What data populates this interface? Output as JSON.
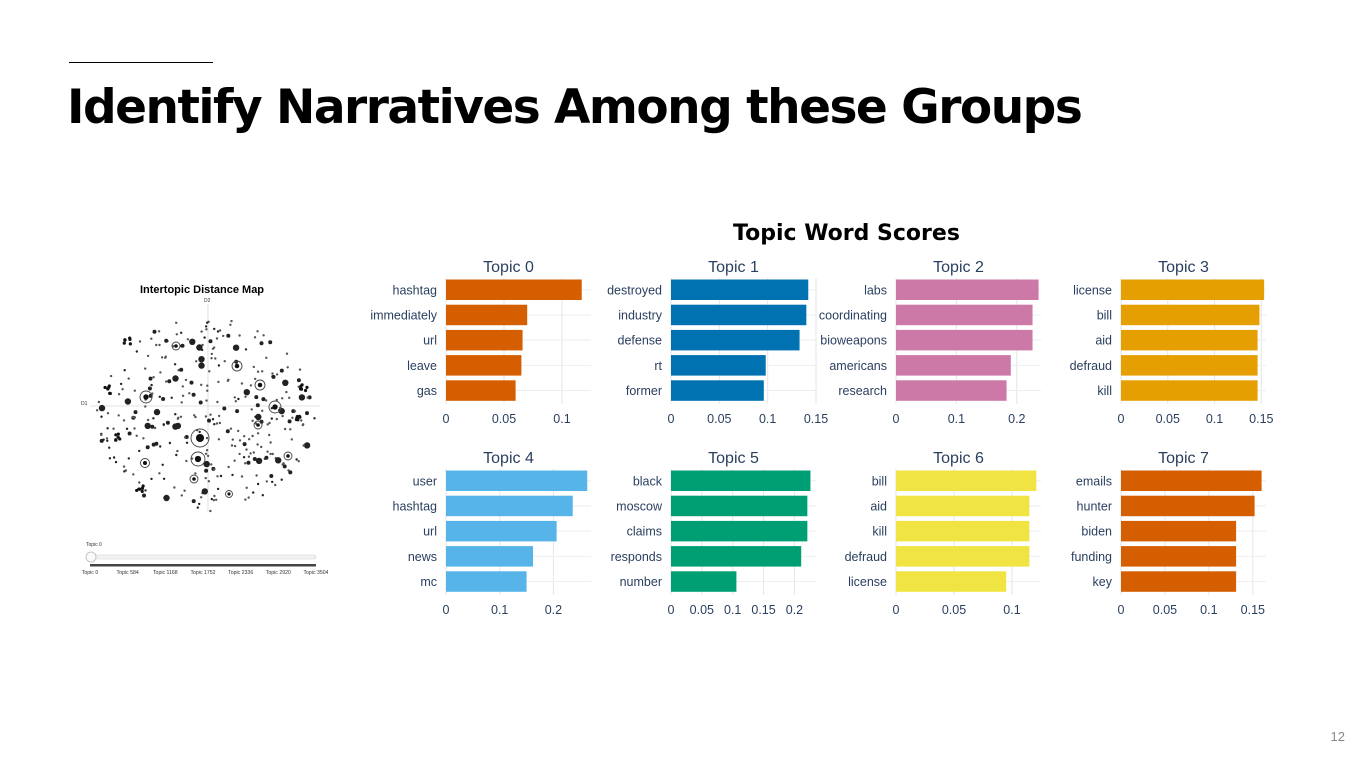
{
  "slide": {
    "title": "Identify Narratives Among these Groups",
    "page_number": "12"
  },
  "map": {
    "title": "Intertopic Distance Map",
    "axis_x_label": "D1",
    "axis_y_label": "D2",
    "slider_label": "Topic 0",
    "slider_ticks": [
      "Topic 0",
      "Topic 584",
      "Topic 1168",
      "Topic 1752",
      "Topic 2336",
      "Topic 2920",
      "Topic 3504"
    ]
  },
  "chart_data": {
    "type": "bar",
    "orientation": "horizontal",
    "title": "Topic Word Scores",
    "panels": [
      {
        "title": "Topic 0",
        "color": "#D55E00",
        "words": [
          "hashtag",
          "immediately",
          "url",
          "leave",
          "gas"
        ],
        "values": [
          0.117,
          0.07,
          0.066,
          0.065,
          0.06
        ],
        "xticks": [
          "0",
          "0.05",
          "0.1"
        ],
        "xtick_values": [
          0,
          0.05,
          0.1
        ],
        "xmax": 0.125
      },
      {
        "title": "Topic 1",
        "color": "#0072B2",
        "words": [
          "destroyed",
          "industry",
          "defense",
          "rt",
          "former"
        ],
        "values": [
          0.142,
          0.14,
          0.133,
          0.098,
          0.096
        ],
        "xticks": [
          "0",
          "0.05",
          "0.1",
          "0.15"
        ],
        "xtick_values": [
          0,
          0.05,
          0.1,
          0.15
        ],
        "xmax": 0.15
      },
      {
        "title": "Topic 2",
        "color": "#CC79A7",
        "words": [
          "labs",
          "coordinating",
          "bioweapons",
          "americans",
          "research"
        ],
        "values": [
          0.236,
          0.226,
          0.226,
          0.19,
          0.183
        ],
        "xticks": [
          "0",
          "0.1",
          "0.2"
        ],
        "xtick_values": [
          0,
          0.1,
          0.2
        ],
        "xmax": 0.24
      },
      {
        "title": "Topic 3",
        "color": "#E69F00",
        "words": [
          "license",
          "bill",
          "aid",
          "defraud",
          "kill"
        ],
        "values": [
          0.153,
          0.148,
          0.146,
          0.146,
          0.146
        ],
        "xticks": [
          "0",
          "0.05",
          "0.1",
          "0.15"
        ],
        "xtick_values": [
          0,
          0.05,
          0.1,
          0.15
        ],
        "xmax": 0.155
      },
      {
        "title": "Topic 4",
        "color": "#56B4E9",
        "words": [
          "user",
          "hashtag",
          "url",
          "news",
          "mc"
        ],
        "values": [
          0.263,
          0.236,
          0.206,
          0.162,
          0.15
        ],
        "xticks": [
          "0",
          "0.1",
          "0.2"
        ],
        "xtick_values": [
          0,
          0.1,
          0.2
        ],
        "xmax": 0.27
      },
      {
        "title": "Topic 5",
        "color": "#009E73",
        "words": [
          "black",
          "moscow",
          "claims",
          "responds",
          "number"
        ],
        "values": [
          0.226,
          0.221,
          0.221,
          0.211,
          0.106
        ],
        "xticks": [
          "0",
          "0.05",
          "0.1",
          "0.15",
          "0.2"
        ],
        "xtick_values": [
          0,
          0.05,
          0.1,
          0.15,
          0.2
        ],
        "xmax": 0.235
      },
      {
        "title": "Topic 6",
        "color": "#F0E442",
        "words": [
          "bill",
          "aid",
          "kill",
          "defraud",
          "license"
        ],
        "values": [
          0.121,
          0.115,
          0.115,
          0.115,
          0.095
        ],
        "xticks": [
          "0",
          "0.05",
          "0.1"
        ],
        "xtick_values": [
          0,
          0.05,
          0.1
        ],
        "xmax": 0.125
      },
      {
        "title": "Topic 7",
        "color": "#D55E00",
        "words": [
          "emails",
          "hunter",
          "biden",
          "funding",
          "key"
        ],
        "values": [
          0.16,
          0.152,
          0.131,
          0.131,
          0.131
        ],
        "xticks": [
          "0",
          "0.05",
          "0.1",
          "0.15"
        ],
        "xtick_values": [
          0,
          0.05,
          0.1,
          0.15
        ],
        "xmax": 0.165
      }
    ],
    "grid": true
  }
}
